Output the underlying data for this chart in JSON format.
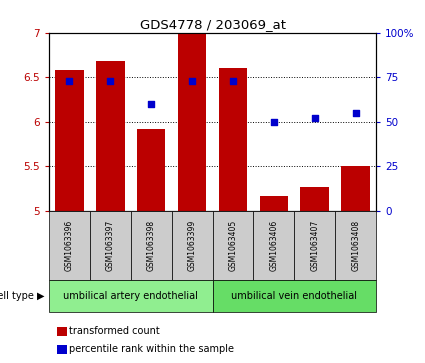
{
  "title": "GDS4778 / 203069_at",
  "samples": [
    "GSM1063396",
    "GSM1063397",
    "GSM1063398",
    "GSM1063399",
    "GSM1063405",
    "GSM1063406",
    "GSM1063407",
    "GSM1063408"
  ],
  "transformed_count": [
    6.58,
    6.68,
    5.92,
    7.0,
    6.6,
    5.16,
    5.27,
    5.5
  ],
  "percentile_rank": [
    73,
    73,
    60,
    73,
    73,
    50,
    52,
    55
  ],
  "ylim_left": [
    5.0,
    7.0
  ],
  "ylim_right": [
    0,
    100
  ],
  "yticks_left": [
    5.0,
    5.5,
    6.0,
    6.5,
    7.0
  ],
  "yticks_right": [
    0,
    25,
    50,
    75,
    100
  ],
  "bar_color": "#BB0000",
  "dot_color": "#0000CC",
  "bar_bottom": 5.0,
  "bar_width": 0.7,
  "cell_type_groups": [
    {
      "label": "umbilical artery endothelial",
      "indices": [
        0,
        1,
        2,
        3
      ],
      "color": "#90EE90"
    },
    {
      "label": "umbilical vein endothelial",
      "indices": [
        4,
        5,
        6,
        7
      ],
      "color": "#66DD66"
    }
  ],
  "legend_bar_label": "transformed count",
  "legend_dot_label": "percentile rank within the sample",
  "cell_type_label": "cell type",
  "sample_box_color": "#CCCCCC",
  "background_color": "#ffffff",
  "gridline_values": [
    5.5,
    6.0,
    6.5
  ]
}
